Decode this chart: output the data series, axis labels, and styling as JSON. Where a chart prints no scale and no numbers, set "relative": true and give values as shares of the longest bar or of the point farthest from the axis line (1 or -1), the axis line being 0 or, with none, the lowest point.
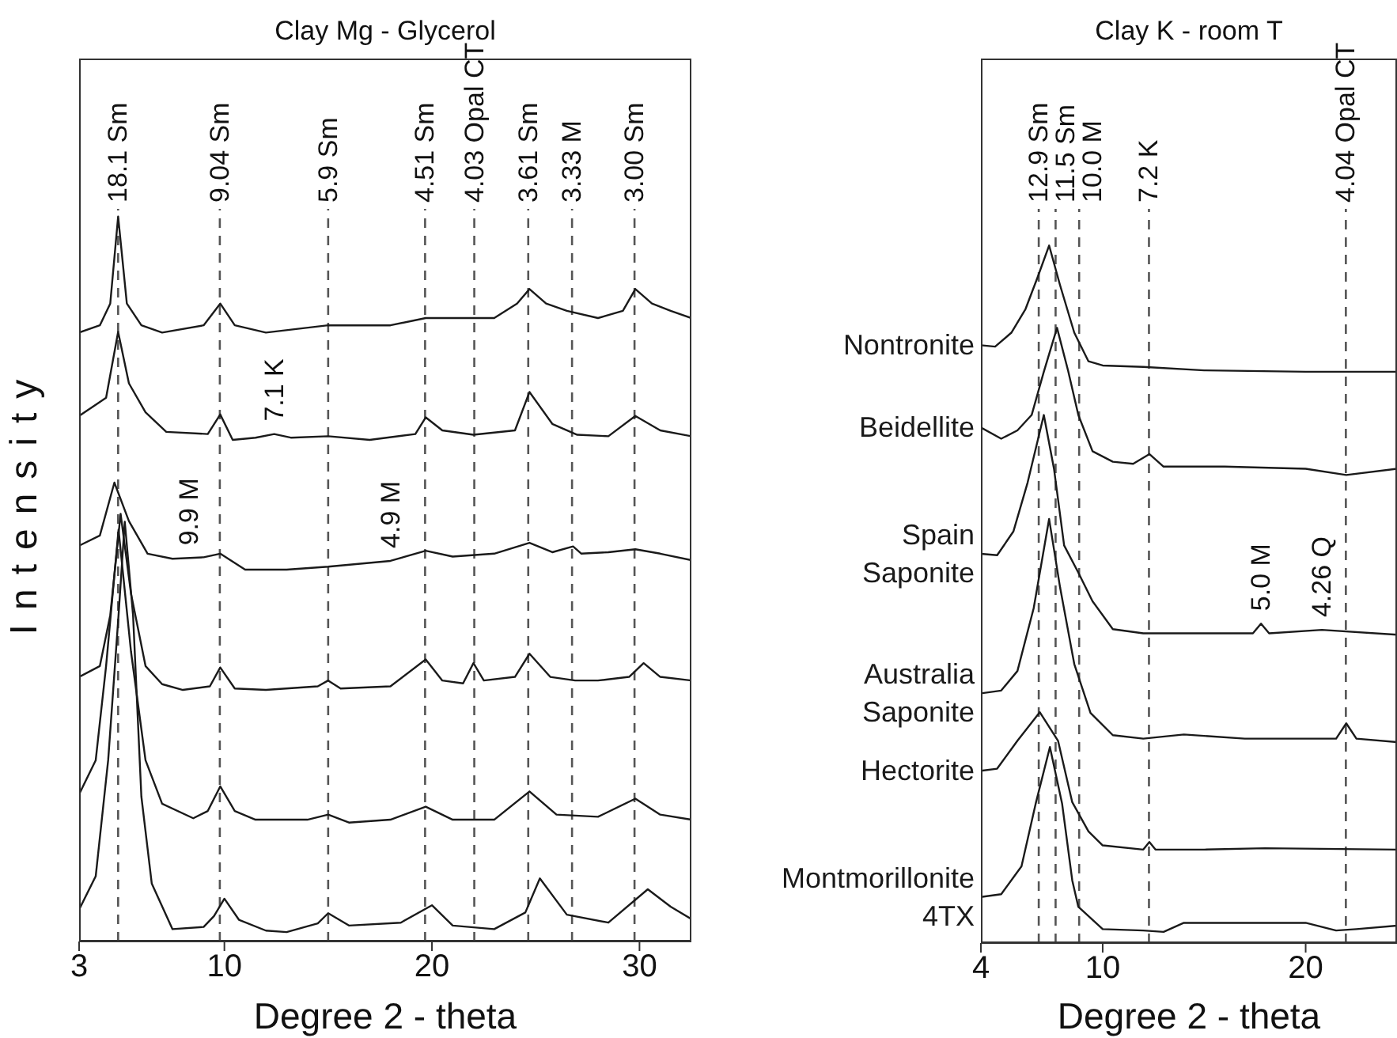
{
  "chart_data": [
    {
      "type": "line",
      "title": "Clay Mg - Glycerol",
      "xlabel": "Degree 2 - theta",
      "ylabel": "Intensity",
      "relative": true,
      "xlim": [
        3,
        32.5
      ],
      "xticks": [
        3,
        10,
        20,
        30
      ],
      "series": [
        {
          "color": "#1a1a1a",
          "x": [
            3,
            4.0,
            4.5,
            4.88,
            5.3,
            6,
            7,
            9,
            9.8,
            10.5,
            12,
            15,
            18,
            19.7,
            21,
            23,
            24.1,
            24.7,
            25.5,
            26.5,
            28,
            29.2,
            29.8,
            30.6,
            31.5,
            32.5
          ],
          "values": [
            0.84,
            0.85,
            0.88,
            1.0,
            0.88,
            0.85,
            0.84,
            0.85,
            0.88,
            0.85,
            0.84,
            0.85,
            0.85,
            0.86,
            0.86,
            0.86,
            0.88,
            0.9,
            0.88,
            0.87,
            0.86,
            0.87,
            0.9,
            0.88,
            0.87,
            0.86
          ]
        },
        {
          "color": "#1a1a1a",
          "x": [
            3,
            4.3,
            4.88,
            5.4,
            6.2,
            7.2,
            9.2,
            9.8,
            10.4,
            11.5,
            12.4,
            13.2,
            15,
            17,
            19.2,
            19.7,
            20.5,
            22,
            24,
            24.7,
            25.8,
            27,
            28.5,
            29.8,
            31,
            32.5
          ],
          "values": [
            0.725,
            0.75,
            0.841,
            0.77,
            0.73,
            0.703,
            0.7,
            0.727,
            0.692,
            0.695,
            0.7,
            0.695,
            0.697,
            0.692,
            0.7,
            0.723,
            0.705,
            0.699,
            0.705,
            0.758,
            0.714,
            0.699,
            0.697,
            0.725,
            0.705,
            0.697
          ]
        },
        {
          "color": "#1a1a1a",
          "x": [
            3,
            4.0,
            4.7,
            5.4,
            6.3,
            7.5,
            9.0,
            9.8,
            11,
            13,
            15,
            18,
            19.7,
            21,
            23,
            24.7,
            25.8,
            26.8,
            27.2,
            28.5,
            29.8,
            31,
            32.5
          ],
          "values": [
            0.546,
            0.56,
            0.633,
            0.58,
            0.535,
            0.528,
            0.53,
            0.535,
            0.513,
            0.513,
            0.517,
            0.525,
            0.539,
            0.531,
            0.535,
            0.55,
            0.537,
            0.545,
            0.535,
            0.537,
            0.541,
            0.535,
            0.526
          ]
        },
        {
          "color": "#1a1a1a",
          "x": [
            3,
            4.0,
            4.5,
            5.0,
            5.5,
            6.2,
            7,
            8,
            9.3,
            9.8,
            10.5,
            12,
            14.5,
            15,
            15.6,
            18,
            19.7,
            20.5,
            21.5,
            22,
            22.5,
            24,
            24.7,
            25.7,
            26.9,
            28,
            29.5,
            30.2,
            31,
            32.5
          ],
          "values": [
            0.365,
            0.38,
            0.45,
            0.59,
            0.48,
            0.38,
            0.355,
            0.347,
            0.352,
            0.378,
            0.349,
            0.347,
            0.352,
            0.36,
            0.349,
            0.352,
            0.389,
            0.36,
            0.356,
            0.384,
            0.36,
            0.365,
            0.397,
            0.365,
            0.36,
            0.36,
            0.365,
            0.384,
            0.365,
            0.36
          ]
        },
        {
          "color": "#1a1a1a",
          "x": [
            3,
            3.8,
            4.3,
            4.9,
            5.5,
            6.2,
            7,
            8.5,
            9.2,
            9.8,
            10.5,
            11.5,
            14,
            15,
            16,
            18,
            19.7,
            21,
            23,
            24.7,
            26,
            28,
            29.8,
            31,
            32.5
          ],
          "values": [
            0.203,
            0.25,
            0.38,
            0.568,
            0.4,
            0.25,
            0.19,
            0.17,
            0.18,
            0.214,
            0.18,
            0.168,
            0.168,
            0.175,
            0.164,
            0.168,
            0.186,
            0.168,
            0.168,
            0.207,
            0.175,
            0.172,
            0.197,
            0.175,
            0.168
          ]
        },
        {
          "color": "#1a1a1a",
          "x": [
            3,
            3.8,
            4.4,
            4.9,
            5.2,
            5.6,
            6.0,
            6.5,
            7.5,
            9,
            9.5,
            10,
            10.7,
            12,
            13,
            14.5,
            15,
            16,
            18.5,
            20,
            21,
            23,
            24.5,
            25.2,
            26.5,
            28.5,
            30.4,
            31.5,
            32.5
          ],
          "values": [
            0.044,
            0.09,
            0.25,
            0.45,
            0.579,
            0.45,
            0.2,
            0.08,
            0.017,
            0.02,
            0.035,
            0.059,
            0.03,
            0.015,
            0.013,
            0.025,
            0.039,
            0.022,
            0.026,
            0.05,
            0.022,
            0.017,
            0.04,
            0.087,
            0.037,
            0.026,
            0.072,
            0.048,
            0.031
          ]
        }
      ],
      "ref_lines": [
        {
          "axis": "x",
          "value": 4.88,
          "label": "18.1 Sm",
          "color": "#555555",
          "line_style": "dashed"
        },
        {
          "axis": "x",
          "value": 9.78,
          "label": "9.04 Sm",
          "color": "#555555",
          "line_style": "dashed"
        },
        {
          "axis": "x",
          "value": 15.0,
          "label": "5.9 Sm",
          "color": "#555555",
          "line_style": "dashed"
        },
        {
          "axis": "x",
          "value": 19.67,
          "label": "4.51 Sm",
          "color": "#555555",
          "line_style": "dashed"
        },
        {
          "axis": "x",
          "value": 22.04,
          "label": "4.03 Opal CT",
          "color": "#555555",
          "line_style": "dashed"
        },
        {
          "axis": "x",
          "value": 24.64,
          "label": "3.61 Sm",
          "color": "#555555",
          "line_style": "dashed"
        },
        {
          "axis": "x",
          "value": 26.75,
          "label": "3.33 M",
          "color": "#555555",
          "line_style": "dashed"
        },
        {
          "axis": "x",
          "value": 29.76,
          "label": "3.00 Sm",
          "color": "#555555",
          "line_style": "dashed"
        }
      ],
      "annotations": [
        {
          "text": "7.1 K",
          "x": 12.4,
          "y": 0.7
        },
        {
          "text": "9.9 M",
          "x": 8.3,
          "y": 0.529
        },
        {
          "text": "4.9 M",
          "x": 18.0,
          "y": 0.525
        }
      ]
    },
    {
      "type": "line",
      "title": "Clay K - room T",
      "xlabel": "Degree 2 - theta",
      "relative": true,
      "xlim": [
        4,
        24.5
      ],
      "xticks": [
        4,
        10,
        20
      ],
      "series": [
        {
          "name": "Nontronite",
          "color": "#1a1a1a",
          "x": [
            4,
            4.7,
            5.5,
            6.2,
            6.8,
            7.36,
            7.9,
            8.6,
            9.3,
            10,
            12,
            15,
            20,
            24.5
          ],
          "values": [
            0.857,
            0.855,
            0.875,
            0.909,
            0.955,
            1.0,
            0.943,
            0.875,
            0.834,
            0.828,
            0.826,
            0.821,
            0.819,
            0.819
          ]
        },
        {
          "name": "Beidellite",
          "color": "#1a1a1a",
          "x": [
            4,
            5.0,
            5.8,
            6.5,
            7.1,
            7.75,
            8.3,
            8.8,
            9.5,
            10.5,
            11.5,
            12.3,
            13,
            16,
            20,
            22,
            24.5
          ],
          "values": [
            0.739,
            0.723,
            0.735,
            0.757,
            0.819,
            0.882,
            0.82,
            0.757,
            0.705,
            0.69,
            0.687,
            0.701,
            0.683,
            0.683,
            0.68,
            0.671,
            0.68
          ]
        },
        {
          "name": "Spain Saponite",
          "color": "#1a1a1a",
          "x": [
            4,
            4.8,
            5.6,
            6.3,
            7.1,
            7.6,
            8.1,
            8.8,
            9.5,
            10.5,
            12,
            15,
            17.4,
            17.8,
            18.2,
            20.8,
            24.5
          ],
          "values": [
            0.558,
            0.556,
            0.59,
            0.66,
            0.757,
            0.68,
            0.57,
            0.531,
            0.49,
            0.45,
            0.444,
            0.444,
            0.444,
            0.458,
            0.444,
            0.449,
            0.442
          ]
        },
        {
          "name": "Australia Saponite",
          "color": "#1a1a1a",
          "x": [
            4,
            5,
            5.8,
            6.6,
            7.36,
            7.9,
            8.6,
            9.4,
            10.5,
            12,
            14,
            15,
            17,
            20,
            21.5,
            22,
            22.5,
            24.5
          ],
          "values": [
            0.358,
            0.362,
            0.39,
            0.48,
            0.608,
            0.51,
            0.4,
            0.33,
            0.298,
            0.293,
            0.299,
            0.297,
            0.293,
            0.293,
            0.293,
            0.315,
            0.293,
            0.288
          ]
        },
        {
          "name": "Hectorite",
          "color": "#1a1a1a",
          "x": [
            4,
            4.8,
            5.8,
            6.9,
            7.8,
            8.5,
            9.3,
            10,
            12,
            12.3,
            12.6,
            15,
            18,
            24.5
          ],
          "values": [
            0.247,
            0.25,
            0.29,
            0.331,
            0.29,
            0.202,
            0.16,
            0.14,
            0.134,
            0.145,
            0.134,
            0.134,
            0.136,
            0.134
          ]
        },
        {
          "name": "Montmorillonite 4TX",
          "color": "#1a1a1a",
          "x": [
            4,
            5,
            6,
            6.7,
            7.4,
            8,
            8.5,
            8.8,
            10,
            12,
            13,
            14,
            18,
            20,
            21.5,
            22.5,
            24.5
          ],
          "values": [
            0.066,
            0.07,
            0.11,
            0.2,
            0.281,
            0.2,
            0.09,
            0.052,
            0.02,
            0.018,
            0.016,
            0.029,
            0.029,
            0.029,
            0.018,
            0.02,
            0.025
          ]
        }
      ],
      "ref_lines": [
        {
          "axis": "x",
          "value": 6.85,
          "label": "12.9 Sm",
          "color": "#555555",
          "line_style": "dashed"
        },
        {
          "axis": "x",
          "value": 7.68,
          "label": "11.5 Sm",
          "color": "#555555",
          "line_style": "dashed"
        },
        {
          "axis": "x",
          "value": 8.84,
          "label": "10.0 M",
          "color": "#555555",
          "line_style": "dashed"
        },
        {
          "axis": "x",
          "value": 12.28,
          "label": "7.2 K",
          "color": "#555555",
          "line_style": "dashed"
        },
        {
          "axis": "x",
          "value": 21.98,
          "label": "4.04 Opal CT",
          "color": "#555555",
          "line_style": "dashed"
        }
      ],
      "annotations": [
        {
          "text": "5.0 M",
          "x": 17.8,
          "y": 0.458
        },
        {
          "text": "4.26 Q",
          "x": 20.8,
          "y": 0.449
        }
      ]
    }
  ]
}
